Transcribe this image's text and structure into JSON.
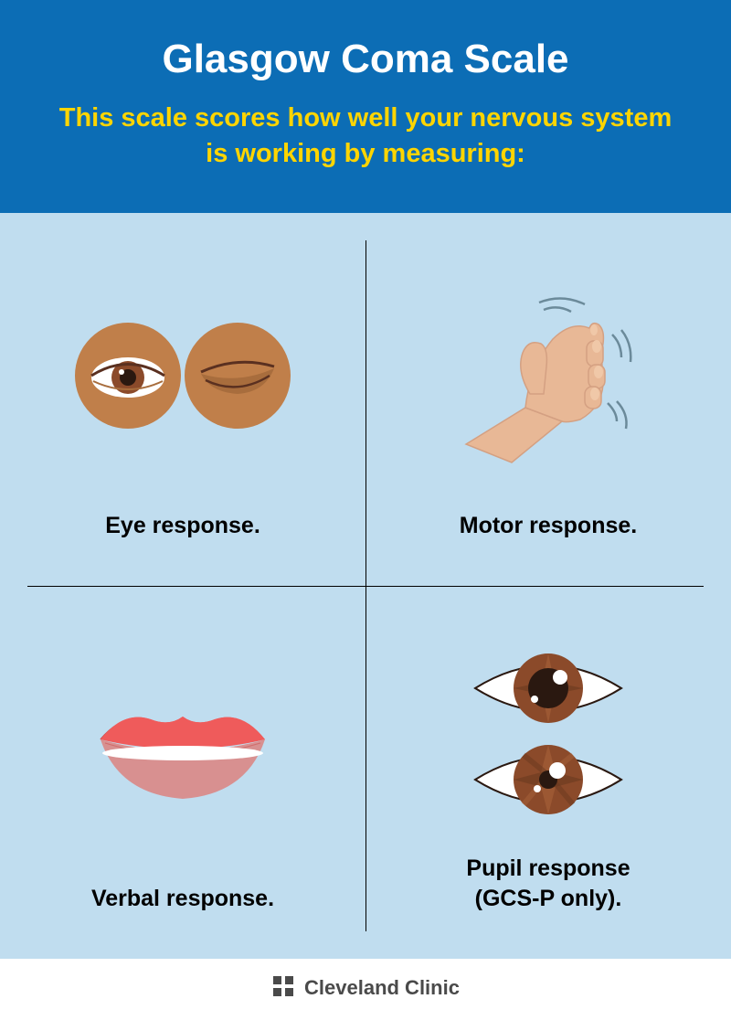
{
  "header": {
    "title": "Glasgow Coma Scale",
    "subtitle": "This scale scores how well your nervous system is working by measuring:",
    "bg_color": "#0c6db5",
    "title_color": "#ffffff",
    "subtitle_color": "#ffd500",
    "title_fontsize": 44,
    "subtitle_fontsize": 29
  },
  "grid": {
    "bg_color": "#c0ddef",
    "divider_color": "#000000",
    "label_fontsize": 25,
    "label_color": "#000000",
    "cells": [
      {
        "label": "Eye response.",
        "icon": "eye-response"
      },
      {
        "label": "Motor response.",
        "icon": "motor-response"
      },
      {
        "label": "Verbal response.",
        "icon": "verbal-response"
      },
      {
        "label": "Pupil response\n(GCS-P only).",
        "icon": "pupil-response"
      }
    ],
    "icon_colors": {
      "skin_dark": "#c07f4a",
      "skin_dark_shadow": "#a86d3d",
      "skin_light": "#e8b896",
      "skin_light_shadow": "#d4a082",
      "eye_white": "#ffffff",
      "iris_brown": "#8b4a2a",
      "iris_dark": "#5a3020",
      "pupil_dark": "#2a1810",
      "lips_red": "#ef5b5b",
      "lips_dark": "#c94848",
      "lips_inner": "#d89090",
      "motion_lines": "#6b8a9a",
      "nail_color": "#f0c8a8"
    }
  },
  "footer": {
    "brand": "Cleveland Clinic",
    "text_color": "#4a4a4a",
    "icon_color": "#4a4a4a",
    "fontsize": 22
  }
}
